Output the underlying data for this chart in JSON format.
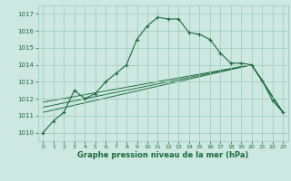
{
  "xlabel": "Graphe pression niveau de la mer (hPa)",
  "bg_color": "#cce8e0",
  "grid_color": "#9dc8bc",
  "line_color": "#1a6b3a",
  "ylim": [
    1009.5,
    1017.5
  ],
  "xlim": [
    -0.5,
    23.5
  ],
  "yticks": [
    1010,
    1011,
    1012,
    1013,
    1014,
    1015,
    1016,
    1017
  ],
  "xticks": [
    0,
    1,
    2,
    3,
    4,
    5,
    6,
    7,
    8,
    9,
    10,
    11,
    12,
    13,
    14,
    15,
    16,
    17,
    18,
    19,
    20,
    21,
    22,
    23
  ],
  "main_line_x": [
    0,
    1,
    2,
    3,
    4,
    5,
    6,
    7,
    8,
    9,
    10,
    11,
    12,
    13,
    14,
    15,
    16,
    17,
    18,
    19,
    20,
    21,
    22,
    23
  ],
  "main_line_y": [
    1010.0,
    1010.7,
    1011.2,
    1012.5,
    1012.0,
    1012.3,
    1013.0,
    1013.5,
    1014.0,
    1015.5,
    1016.3,
    1016.8,
    1016.7,
    1016.7,
    1015.9,
    1015.8,
    1015.5,
    1014.7,
    1014.1,
    1014.1,
    1014.0,
    1013.1,
    1011.9,
    1011.2
  ],
  "line2_x": [
    0,
    20,
    23
  ],
  "line2_y": [
    1011.2,
    1014.0,
    1011.2
  ],
  "line3_x": [
    0,
    20,
    23
  ],
  "line3_y": [
    1011.5,
    1014.0,
    1011.2
  ],
  "line4_x": [
    0,
    20,
    23
  ],
  "line4_y": [
    1011.8,
    1014.0,
    1011.2
  ]
}
